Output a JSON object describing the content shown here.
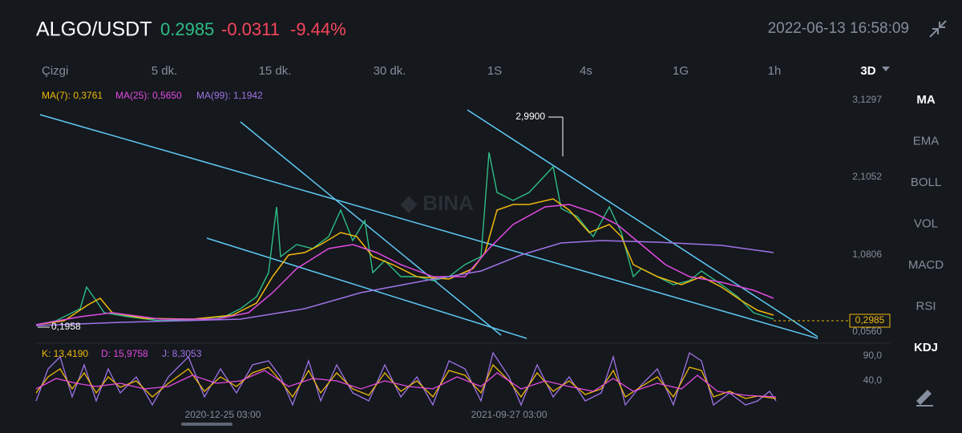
{
  "header": {
    "pair": "ALGO/USDT",
    "price": "0.2985",
    "change": "-0.0311",
    "percent": "-9.44%",
    "datetime": "2022-06-13 16:58:09"
  },
  "intervals": [
    "Çizgi",
    "5 dk.",
    "15 dk.",
    "30 dk.",
    "1S",
    "4s",
    "1G",
    "1h",
    "3D"
  ],
  "indicators": [
    "MA",
    "EMA",
    "BOLL",
    "VOL",
    "MACD",
    "RSI",
    "KDJ"
  ],
  "ma_legend": [
    "MA(7): 0,3761",
    "MA(25): 0,5650",
    "MA(99): 1,1942"
  ],
  "price_axis": [
    "3,1297",
    "2,1052",
    "1,0806",
    "0,0560"
  ],
  "current_price_label": "0,2985",
  "high_label": "2,9900",
  "low_label": "0,1958",
  "kdj_legend": [
    "K: 13,4190",
    "D: 15,9758",
    "J: 8,3053"
  ],
  "kdj_axis": [
    "90,0",
    "40,0"
  ],
  "time_axis": [
    "2020-12-25 03:00",
    "2021-09-27 03:00"
  ]
}
